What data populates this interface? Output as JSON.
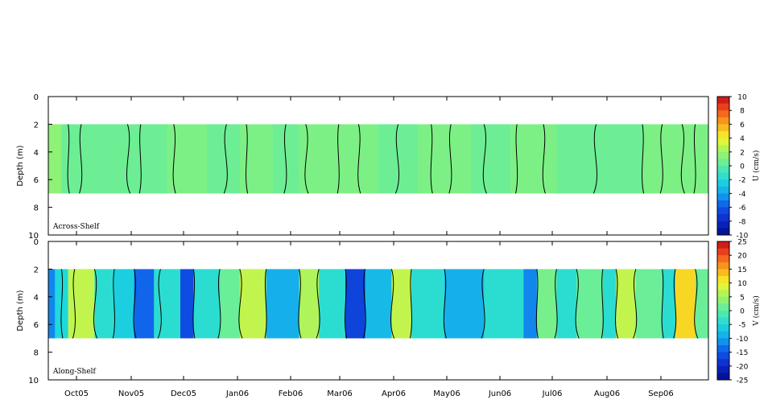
{
  "chart_data": [
    {
      "type": "heatmap",
      "panel_label": "Across-Shelf",
      "ylabel": "Depth (m)",
      "ylim": [
        0,
        10
      ],
      "y_ticks": [
        "0",
        "2",
        "4",
        "6",
        "8",
        "10"
      ],
      "x_tick_labels": [
        "Oct05",
        "Nov05",
        "Dec05",
        "Jan06",
        "Feb06",
        "Mar06",
        "Apr06",
        "May06",
        "Jun06",
        "Jul06",
        "Aug06",
        "Sep06"
      ],
      "data_depth_range": [
        2,
        7
      ],
      "colorbar": {
        "label": "U (cm/s)",
        "range": [
          -10,
          10
        ],
        "tick_labels": [
          "10",
          "8",
          "6",
          "4",
          "2",
          "0",
          "-2",
          "-4",
          "-6",
          "-8",
          "-10"
        ]
      },
      "color_bands": [
        {
          "x": [
            0.0,
            0.02
          ],
          "value": 1.5
        },
        {
          "x": [
            0.02,
            0.18
          ],
          "value": 0.5
        },
        {
          "x": [
            0.18,
            0.24
          ],
          "value": 1
        },
        {
          "x": [
            0.24,
            0.29
          ],
          "value": 0.5
        },
        {
          "x": [
            0.29,
            0.34
          ],
          "value": 1
        },
        {
          "x": [
            0.34,
            0.38
          ],
          "value": 0.5
        },
        {
          "x": [
            0.38,
            0.5
          ],
          "value": 1
        },
        {
          "x": [
            0.5,
            0.56
          ],
          "value": 0.5
        },
        {
          "x": [
            0.56,
            0.64
          ],
          "value": 1
        },
        {
          "x": [
            0.64,
            0.7
          ],
          "value": 0.5
        },
        {
          "x": [
            0.7,
            0.77
          ],
          "value": 1
        },
        {
          "x": [
            0.77,
            0.9
          ],
          "value": 0.5
        },
        {
          "x": [
            0.9,
            1.0
          ],
          "value": 1
        }
      ],
      "contour_crossings": [
        0.03,
        0.05,
        0.12,
        0.14,
        0.19,
        0.27,
        0.3,
        0.36,
        0.39,
        0.44,
        0.47,
        0.53,
        0.58,
        0.61,
        0.66,
        0.71,
        0.75,
        0.83,
        0.9,
        0.93,
        0.96,
        0.98
      ]
    },
    {
      "type": "heatmap",
      "panel_label": "Along-Shelf",
      "ylabel": "Depth (m)",
      "ylim": [
        0,
        10
      ],
      "y_ticks": [
        "0",
        "2",
        "4",
        "6",
        "8",
        "10"
      ],
      "x_tick_labels": [
        "Oct05",
        "Nov05",
        "Dec05",
        "Jan06",
        "Feb06",
        "Mar06",
        "Apr06",
        "May06",
        "Jun06",
        "Jul06",
        "Aug06",
        "Sep06"
      ],
      "data_depth_range": [
        2,
        7
      ],
      "colorbar": {
        "label": "V (cm/s)",
        "range": [
          -25,
          25
        ],
        "tick_labels": [
          "25",
          "20",
          "15",
          "10",
          "5",
          "0",
          "-5",
          "-10",
          "-15",
          "-20",
          "-25"
        ]
      },
      "color_bands": [
        {
          "x": [
            0.0,
            0.01
          ],
          "value": -12
        },
        {
          "x": [
            0.01,
            0.03
          ],
          "value": -5
        },
        {
          "x": [
            0.03,
            0.07
          ],
          "value": 7
        },
        {
          "x": [
            0.07,
            0.1
          ],
          "value": -4
        },
        {
          "x": [
            0.1,
            0.13
          ],
          "value": -6
        },
        {
          "x": [
            0.13,
            0.16
          ],
          "value": -14
        },
        {
          "x": [
            0.16,
            0.2
          ],
          "value": -4
        },
        {
          "x": [
            0.2,
            0.22
          ],
          "value": -16
        },
        {
          "x": [
            0.22,
            0.26
          ],
          "value": -4
        },
        {
          "x": [
            0.26,
            0.29
          ],
          "value": 1
        },
        {
          "x": [
            0.29,
            0.33
          ],
          "value": 7
        },
        {
          "x": [
            0.33,
            0.38
          ],
          "value": -9
        },
        {
          "x": [
            0.38,
            0.41
          ],
          "value": 6
        },
        {
          "x": [
            0.41,
            0.45
          ],
          "value": -4
        },
        {
          "x": [
            0.45,
            0.48
          ],
          "value": -17
        },
        {
          "x": [
            0.48,
            0.52
          ],
          "value": -8
        },
        {
          "x": [
            0.52,
            0.55
          ],
          "value": 7
        },
        {
          "x": [
            0.55,
            0.6
          ],
          "value": -4
        },
        {
          "x": [
            0.6,
            0.66
          ],
          "value": -9
        },
        {
          "x": [
            0.66,
            0.72
          ],
          "value": -4
        },
        {
          "x": [
            0.72,
            0.74
          ],
          "value": -12
        },
        {
          "x": [
            0.74,
            0.77
          ],
          "value": 2
        },
        {
          "x": [
            0.77,
            0.8
          ],
          "value": -4
        },
        {
          "x": [
            0.8,
            0.84
          ],
          "value": 1
        },
        {
          "x": [
            0.84,
            0.86
          ],
          "value": -4
        },
        {
          "x": [
            0.86,
            0.89
          ],
          "value": 7
        },
        {
          "x": [
            0.89,
            0.93
          ],
          "value": 1
        },
        {
          "x": [
            0.93,
            0.95
          ],
          "value": -4
        },
        {
          "x": [
            0.95,
            0.98
          ],
          "value": 12
        },
        {
          "x": [
            0.98,
            1.0
          ],
          "value": 1
        }
      ],
      "contour_crossings": [
        0.02,
        0.04,
        0.07,
        0.1,
        0.13,
        0.17,
        0.22,
        0.26,
        0.29,
        0.33,
        0.38,
        0.41,
        0.45,
        0.48,
        0.52,
        0.55,
        0.6,
        0.66,
        0.74,
        0.77,
        0.8,
        0.84,
        0.86,
        0.89,
        0.93,
        0.95,
        0.98
      ]
    }
  ],
  "colorscale": [
    {
      "frac": 0.0,
      "color": "#000e8a"
    },
    {
      "frac": 0.1,
      "color": "#0d27c8"
    },
    {
      "frac": 0.2,
      "color": "#0f55ea"
    },
    {
      "frac": 0.3,
      "color": "#12a6ef"
    },
    {
      "frac": 0.4,
      "color": "#1fd9dc"
    },
    {
      "frac": 0.5,
      "color": "#5deca4"
    },
    {
      "frac": 0.6,
      "color": "#9df466"
    },
    {
      "frac": 0.7,
      "color": "#f6f62a"
    },
    {
      "frac": 0.8,
      "color": "#f9a81c"
    },
    {
      "frac": 0.9,
      "color": "#f3521d"
    },
    {
      "frac": 1.0,
      "color": "#c50b15"
    }
  ]
}
